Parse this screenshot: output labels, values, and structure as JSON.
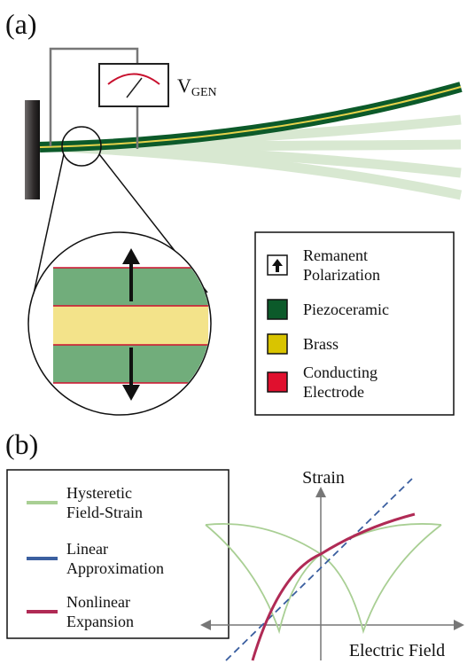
{
  "panel_a": {
    "label": "(a)",
    "meter_label": "V",
    "meter_subscript": "GEN",
    "legend": [
      {
        "lines": [
          "Remanent",
          "Polarization"
        ]
      },
      {
        "lines": [
          "Piezoceramic"
        ]
      },
      {
        "lines": [
          "Brass"
        ]
      },
      {
        "lines": [
          "Conducting",
          "Electrode"
        ]
      }
    ]
  },
  "panel_b": {
    "label": "(b)",
    "legend": [
      {
        "lines": [
          "Hysteretic",
          "Field-Strain"
        ]
      },
      {
        "lines": [
          "Linear",
          "Approximation"
        ]
      },
      {
        "lines": [
          "Nonlinear",
          "Expansion"
        ]
      }
    ],
    "y_axis_label": "Strain",
    "x_axis_label": "Electric Field"
  }
}
